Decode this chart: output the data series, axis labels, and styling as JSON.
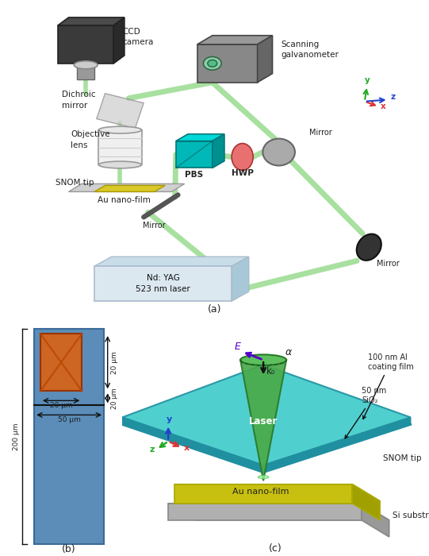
{
  "panel_a_label": "(a)",
  "panel_b_label": "(b)",
  "panel_c_label": "(c)",
  "bg_color": "#ffffff",
  "beam_color": "#a8e0a0",
  "text_color": "#222222",
  "axis_x_color": "#dd3333",
  "axis_y_color": "#2244cc",
  "axis_z_color": "#22aa22",
  "laser_text": "Nd: YAG\n523 nm laser",
  "galvo_label": "Scanning\ngalvanometer",
  "ccd_label": "CCD\ncamera",
  "dichroic_label": "Dichroic\nmirror",
  "obj_label": "Objective\nlens",
  "snom_label_a": "SNOM tip",
  "au_label_a": "Au nano-film",
  "pbs_label": "PBS",
  "hwp_label": "HWP",
  "mirror_label": "Mirror",
  "blue_rect_color": "#5b8db8",
  "orange_rect_color": "#cc6622",
  "cyan_plane_color": "#3dcaca",
  "yellow_box_color": "#ddd020",
  "label_200um": "200 μm",
  "label_50um": "50 μm",
  "label_20um": "20 μm",
  "label_100nm": "100 nm Al\ncoating film",
  "label_50nm": "50 nm\nSiO₂",
  "label_snom": "SNOM tip",
  "label_au": "Au nano-film",
  "label_si": "Si substrate",
  "label_laser": "Laser",
  "label_E": "E",
  "label_alpha": "α",
  "label_k": "k₀"
}
